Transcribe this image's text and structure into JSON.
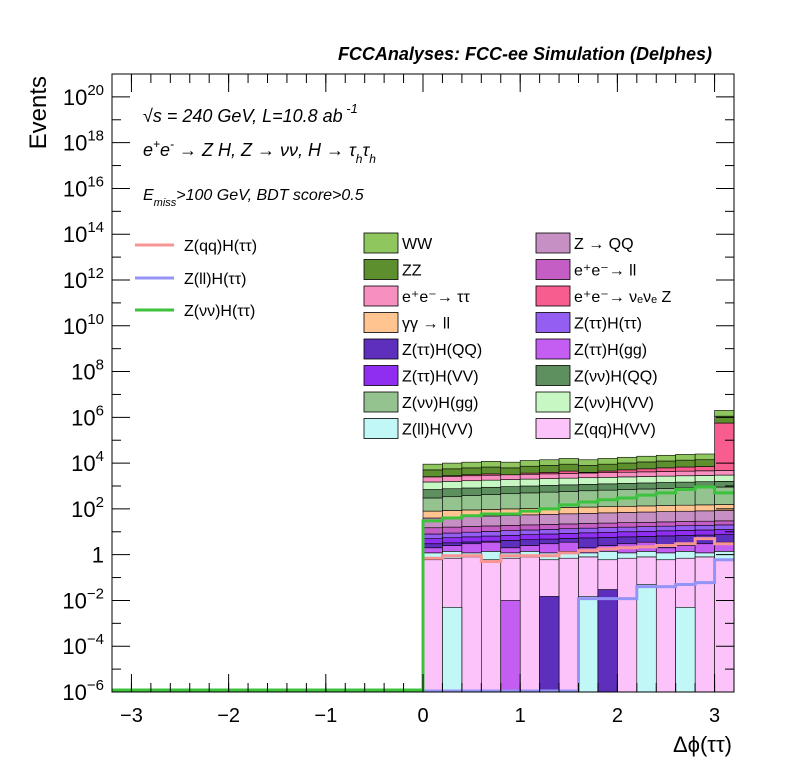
{
  "chart_data": {
    "type": "histogram",
    "title": "FCCAnalyses: FCC-ee Simulation (Delphes)",
    "xlabel": "Δϕ(ττ)",
    "ylabel": "Events",
    "xlim": [
      -3.2,
      3.2
    ],
    "ylim": [
      1e-06,
      1e+21
    ],
    "yscale": "log",
    "x_ticks": [
      -3,
      -2,
      -1,
      0,
      1,
      2,
      3
    ],
    "x_tick_labels": [
      "−3",
      "−2",
      "−1",
      "0",
      "1",
      "2",
      "3"
    ],
    "y_ticks": [
      1e-06,
      0.0001,
      0.01,
      1,
      100.0,
      10000.0,
      1000000.0,
      100000000.0,
      10000000000.0,
      1000000000000.0,
      100000000000000.0,
      1e+16,
      1e+18,
      1e+20
    ],
    "y_tick_labels": [
      {
        "base": "10",
        "exp": "−6"
      },
      {
        "base": "10",
        "exp": "−4"
      },
      {
        "base": "10",
        "exp": "−2"
      },
      {
        "base": "1",
        "exp": ""
      },
      {
        "base": "10",
        "exp": "2"
      },
      {
        "base": "10",
        "exp": "4"
      },
      {
        "base": "10",
        "exp": "6"
      },
      {
        "base": "10",
        "exp": "8"
      },
      {
        "base": "10",
        "exp": "10"
      },
      {
        "base": "10",
        "exp": "12"
      },
      {
        "base": "10",
        "exp": "14"
      },
      {
        "base": "10",
        "exp": "16"
      },
      {
        "base": "10",
        "exp": "18"
      },
      {
        "base": "10",
        "exp": "20"
      }
    ],
    "annotations": [
      "√s = 240 GeV, L=10.8 ab⁻¹",
      "e⁺e⁻ → Z H, Z → νν, H → τₕτₕ",
      "E_miss>100 GeV, BDT score>0.5"
    ],
    "bin_edges": [
      0,
      0.2,
      0.4,
      0.6,
      0.8,
      1.0,
      1.2,
      1.4,
      1.6,
      1.8,
      2.0,
      2.2,
      2.4,
      2.6,
      2.8,
      3.0,
      3.2
    ],
    "stack_top": [
      9000,
      10000,
      11000,
      12000,
      11000,
      13000,
      14000,
      16000,
      14000,
      16000,
      18000,
      20000,
      22000,
      24000,
      25000,
      2000000
    ],
    "stacked_backgrounds": [
      {
        "name": "WW",
        "color": "#8fc75e"
      },
      {
        "name": "ZZ",
        "color": "#5e8f2e"
      },
      {
        "name": "e⁺e⁻→ ττ",
        "color": "#f78fc0"
      },
      {
        "name": "γγ → ll",
        "color": "#ffc48f"
      },
      {
        "name": "Z(ττ)H(QQ)",
        "color": "#5e2ebd"
      },
      {
        "name": "Z(ττ)H(VV)",
        "color": "#8f2ef0"
      },
      {
        "name": "Z(νν)H(gg)",
        "color": "#94c38f"
      },
      {
        "name": "Z(ll)H(VV)",
        "color": "#c2f7f7"
      },
      {
        "name": "Z → QQ",
        "color": "#c790c4"
      },
      {
        "name": "e⁺e⁻→ ll",
        "color": "#c45ec4"
      },
      {
        "name": "e⁺e⁻→ νₑνₑ Z",
        "color": "#f75e8f"
      },
      {
        "name": "Z(ττ)H(ττ)",
        "color": "#945ef2"
      },
      {
        "name": "Z(ττ)H(gg)",
        "color": "#c45ef2"
      },
      {
        "name": "Z(νν)H(QQ)",
        "color": "#5e8f5e"
      },
      {
        "name": "Z(νν)H(VV)",
        "color": "#c7f7c2"
      },
      {
        "name": "Z(qq)H(VV)",
        "color": "#fcc2fa"
      }
    ],
    "signals": [
      {
        "name": "Z(qq)H(ττ)",
        "color": "#f79494",
        "values": [
          0.7,
          0.9,
          0.9,
          0.5,
          0.9,
          0.9,
          0.9,
          1.2,
          1.5,
          1.8,
          2.0,
          2.2,
          2.5,
          3.0,
          5.0,
          3.0
        ]
      },
      {
        "name": "Z(ll)H(ττ)",
        "color": "#9494f7",
        "values": [
          null,
          null,
          null,
          null,
          null,
          null,
          null,
          null,
          0.012,
          0.012,
          0.012,
          0.04,
          0.04,
          0.05,
          0.06,
          0.6
        ]
      },
      {
        "name": "Z(νν)H(ττ)",
        "color": "#3cc23c",
        "values": [
          30,
          40,
          50,
          60,
          60,
          80,
          100,
          150,
          200,
          250,
          300,
          400,
          500,
          700,
          900,
          500
        ]
      }
    ]
  }
}
